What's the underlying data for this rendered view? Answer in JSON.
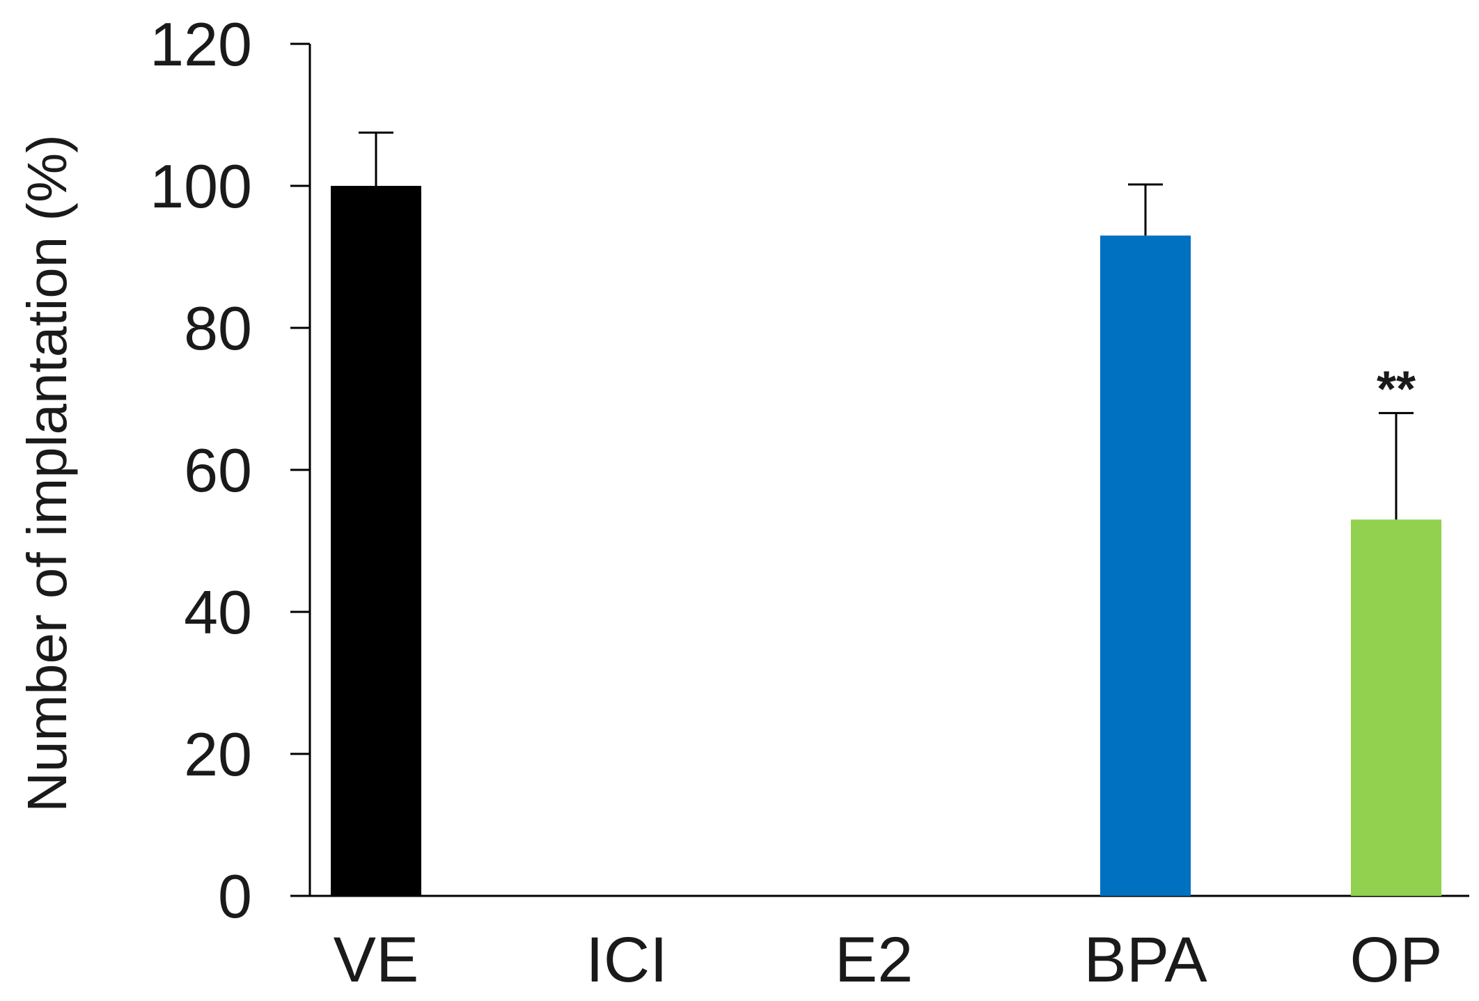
{
  "chart_data": {
    "type": "bar",
    "title": "",
    "xlabel": "",
    "ylabel": "Number of implantation (%)",
    "ylim": [
      0,
      120
    ],
    "yticks": [
      0,
      20,
      40,
      60,
      80,
      100,
      120
    ],
    "grid": false,
    "legend": "none",
    "categories": [
      "VE",
      "ICI",
      "E2",
      "BPA",
      "OP"
    ],
    "values": [
      100,
      0,
      0,
      93,
      53
    ],
    "error": [
      7.5,
      0,
      0,
      7.2,
      15
    ],
    "colors": [
      "#000000",
      "#000000",
      "#000000",
      "#0070C0",
      "#92D050"
    ],
    "annotations": [
      {
        "category": "OP",
        "text": "**"
      }
    ]
  }
}
